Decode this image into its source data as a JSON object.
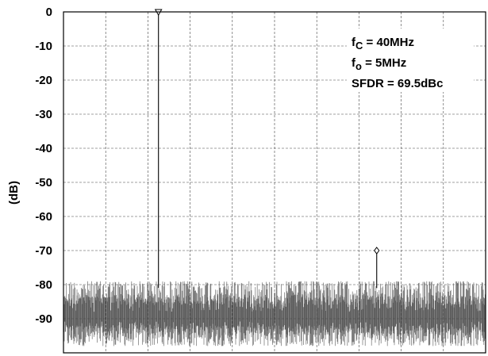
{
  "chart_data": {
    "type": "line",
    "title": "",
    "xlabel": "",
    "ylabel": "(dB)",
    "ylim": [
      -100,
      0
    ],
    "yticks": [
      0,
      -10,
      -20,
      -30,
      -40,
      -50,
      -60,
      -70,
      -80,
      -90
    ],
    "ytick_labels": [
      "0",
      "-10",
      "-20",
      "-30",
      "-40",
      "-50",
      "-60",
      "-70",
      "-80",
      "-90"
    ],
    "grid": true,
    "legend": "none",
    "annotations": [
      {
        "base": "f",
        "sub": "C",
        "text": " = 40MHz"
      },
      {
        "base": "f",
        "sub": "o",
        "text": " = 5MHz"
      },
      {
        "base": "",
        "sub": "",
        "text": "SFDR = 69.5dBc"
      }
    ],
    "markers": [
      {
        "name": "fundamental",
        "shape": "triangle-down",
        "x_fraction": 0.225,
        "y": 0
      },
      {
        "name": "spur",
        "shape": "diamond",
        "x_fraction": 0.742,
        "y": -70
      }
    ],
    "noise_floor": {
      "min": -98,
      "max": -79,
      "mean": -89
    },
    "colors": {
      "trace": "#000000",
      "grid": "#444444",
      "noise": "#555555"
    }
  }
}
